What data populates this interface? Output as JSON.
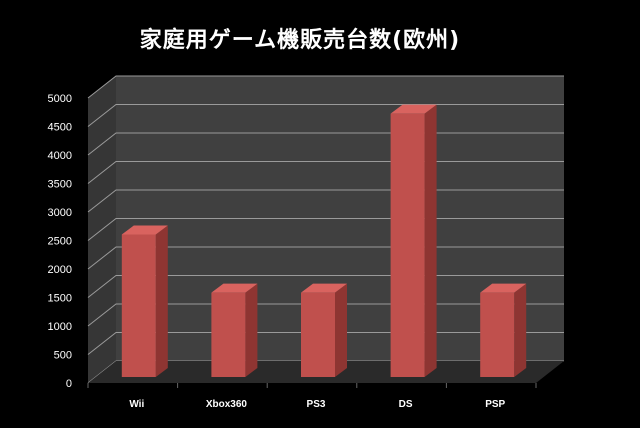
{
  "chart_data": {
    "type": "bar",
    "title": "家庭用ゲーム機販売台数(欧州)",
    "categories": [
      "Wii",
      "Xbox360",
      "PS3",
      "DS",
      "PSP"
    ],
    "values": [
      2500,
      1480,
      1480,
      4620,
      1480
    ],
    "ylim": [
      0,
      5000
    ],
    "yticks": [
      0,
      500,
      1000,
      1500,
      2000,
      2500,
      3000,
      3500,
      4000,
      4500,
      5000
    ],
    "grid": true,
    "legend": "none",
    "colors": {
      "background": "#000000",
      "wall": "#404040",
      "floor": "#2a2a2a",
      "grid": "#9a9a9a",
      "bar_front": "#c0504d",
      "bar_side": "#8e3532",
      "bar_top": "#d9635f",
      "text": "#ffffff"
    }
  }
}
